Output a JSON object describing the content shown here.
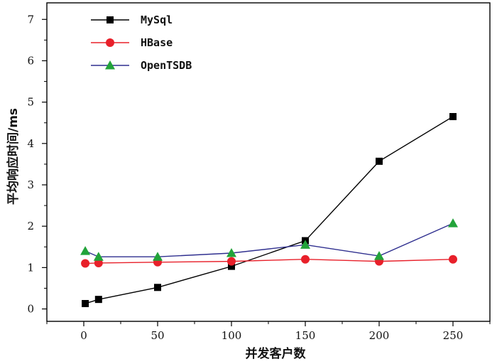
{
  "chart_data": {
    "type": "line",
    "xlabel": "并发客户数",
    "ylabel": "平均响应时间/ms",
    "xlim": [
      -25,
      275
    ],
    "ylim": [
      -0.3,
      7.4
    ],
    "x_ticks": [
      0,
      50,
      100,
      150,
      200,
      250
    ],
    "y_ticks": [
      0,
      1,
      2,
      3,
      4,
      5,
      6,
      7
    ],
    "grid": false,
    "legend_position": "top-left",
    "x": [
      1,
      10,
      50,
      100,
      150,
      200,
      250
    ],
    "series": [
      {
        "name": "MySql",
        "color": "#000000",
        "marker": "square",
        "values": [
          0.13,
          0.23,
          0.52,
          1.03,
          1.65,
          3.57,
          4.65
        ]
      },
      {
        "name": "HBase",
        "color": "#e8202a",
        "marker": "circle",
        "values": [
          1.1,
          1.11,
          1.13,
          1.15,
          1.2,
          1.15,
          1.2
        ]
      },
      {
        "name": "OpenTSDB",
        "color": "#2f2f8f",
        "marker": "triangle",
        "marker_color": "#22a33a",
        "values": [
          1.4,
          1.26,
          1.26,
          1.35,
          1.55,
          1.28,
          2.07
        ]
      }
    ]
  }
}
